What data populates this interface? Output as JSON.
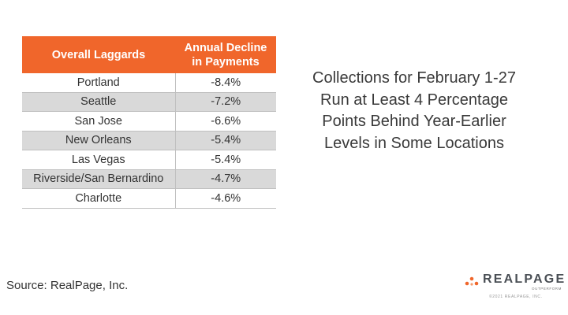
{
  "table": {
    "header": [
      "Overall Laggards",
      [
        "Annual Decline",
        "in Payments"
      ]
    ],
    "rows": [
      [
        "Portland",
        "-8.4%"
      ],
      [
        "Seattle",
        "-7.2%"
      ],
      [
        "San Jose",
        "-6.6%"
      ],
      [
        "New Orleans",
        "-5.4%"
      ],
      [
        "Las Vegas",
        "-5.4%"
      ],
      [
        "Riverside/San Bernardino",
        "-4.7%"
      ],
      [
        "Charlotte",
        "-4.6%"
      ]
    ]
  },
  "side_text": [
    "Collections for February 1-27",
    "Run at Least 4 Percentage",
    "Points Behind Year-Earlier",
    "Levels in Some Locations"
  ],
  "source": "Source: RealPage, Inc.",
  "logo": {
    "name": "REALPAGE",
    "tagline": "OUTPERFORM",
    "copyright": "©2021 REALPAGE, INC."
  }
}
